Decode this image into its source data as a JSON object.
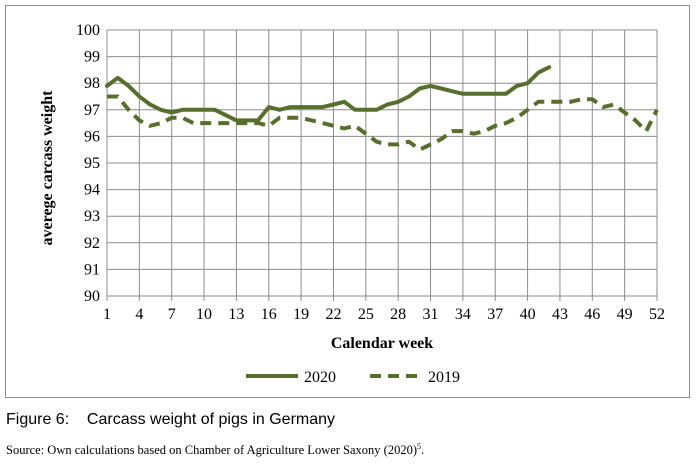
{
  "caption": {
    "label": "Figure 6:",
    "text": "Carcass weight of pigs in Germany"
  },
  "source": {
    "text": "Source: Own calculations based on Chamber of Agriculture Lower Saxony (2020)",
    "footnote": "5",
    "suffix": "."
  },
  "chart_data": {
    "type": "line",
    "xlabel": "Calendar week",
    "ylabel": "averege carcass weight",
    "xlim": [
      1,
      52
    ],
    "ylim": [
      90,
      100
    ],
    "x_ticks": [
      "1",
      "4",
      "7",
      "10",
      "13",
      "16",
      "19",
      "22",
      "25",
      "28",
      "31",
      "34",
      "37",
      "40",
      "43",
      "46",
      "49",
      "52"
    ],
    "y_ticks": [
      "90",
      "91",
      "92",
      "93",
      "94",
      "95",
      "96",
      "97",
      "98",
      "99",
      "100"
    ],
    "grid": true,
    "legend_position": "bottom",
    "colors": {
      "series": "#586e2c",
      "grid": "#8c8c8c"
    },
    "series": [
      {
        "name": "2020",
        "style": "solid",
        "x": [
          1,
          2,
          3,
          4,
          5,
          6,
          7,
          8,
          9,
          10,
          11,
          12,
          13,
          14,
          15,
          16,
          17,
          18,
          19,
          20,
          21,
          22,
          23,
          24,
          25,
          26,
          27,
          28,
          29,
          30,
          31,
          32,
          33,
          34,
          35,
          36,
          37,
          38,
          39,
          40,
          41,
          42
        ],
        "values": [
          97.9,
          98.2,
          97.9,
          97.5,
          97.2,
          97.0,
          96.9,
          97.0,
          97.0,
          97.0,
          97.0,
          96.8,
          96.6,
          96.6,
          96.6,
          97.1,
          97.0,
          97.1,
          97.1,
          97.1,
          97.1,
          97.2,
          97.3,
          97.0,
          97.0,
          97.0,
          97.2,
          97.3,
          97.5,
          97.8,
          97.9,
          97.8,
          97.7,
          97.6,
          97.6,
          97.6,
          97.6,
          97.6,
          97.9,
          98.0,
          98.4,
          98.6
        ]
      },
      {
        "name": "2019",
        "style": "dashed",
        "x": [
          1,
          2,
          3,
          4,
          5,
          6,
          7,
          8,
          9,
          10,
          11,
          12,
          13,
          14,
          15,
          16,
          17,
          18,
          19,
          20,
          21,
          22,
          23,
          24,
          25,
          26,
          27,
          28,
          29,
          30,
          31,
          32,
          33,
          34,
          35,
          36,
          37,
          38,
          39,
          40,
          41,
          42,
          43,
          44,
          45,
          46,
          47,
          48,
          49,
          50,
          51,
          52
        ],
        "values": [
          97.5,
          97.5,
          97.0,
          96.6,
          96.4,
          96.5,
          96.7,
          96.7,
          96.5,
          96.5,
          96.5,
          96.5,
          96.5,
          96.5,
          96.5,
          96.4,
          96.7,
          96.7,
          96.7,
          96.6,
          96.5,
          96.4,
          96.3,
          96.4,
          96.1,
          95.8,
          95.7,
          95.7,
          95.8,
          95.5,
          95.7,
          95.9,
          96.2,
          96.2,
          96.1,
          96.2,
          96.4,
          96.5,
          96.7,
          97.0,
          97.3,
          97.3,
          97.3,
          97.3,
          97.4,
          97.4,
          97.1,
          97.2,
          96.9,
          96.6,
          96.2,
          97.0
        ]
      }
    ]
  }
}
